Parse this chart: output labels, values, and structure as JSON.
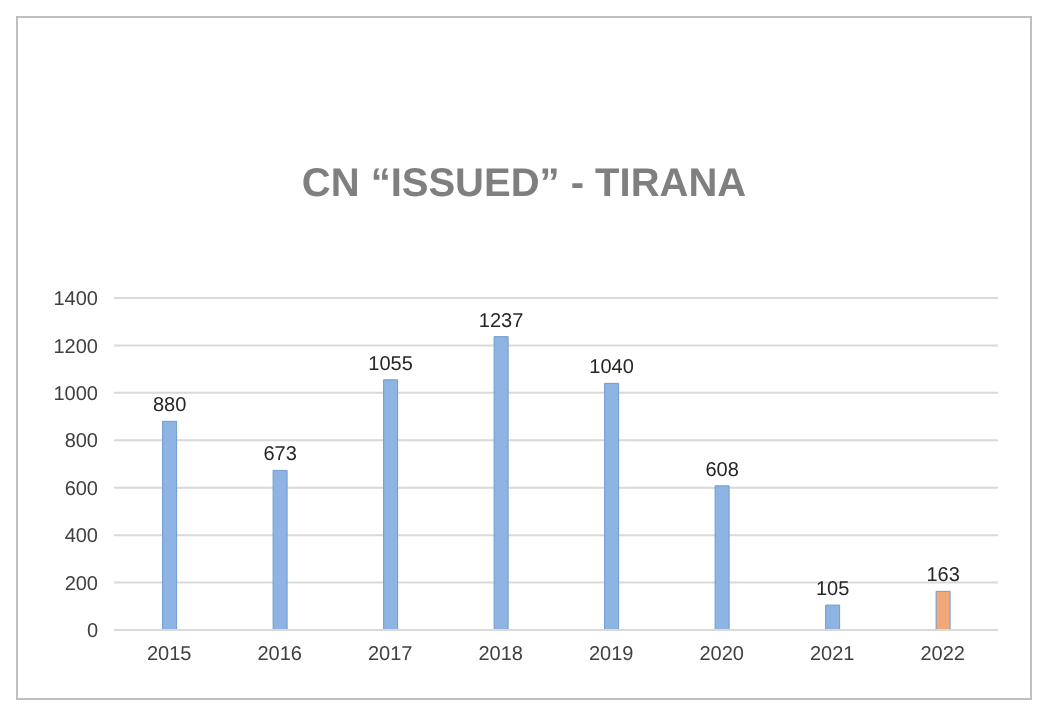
{
  "chart_data": {
    "type": "bar",
    "title": "CN “ISSUED” - TIRANA",
    "categories": [
      "2015",
      "2016",
      "2017",
      "2018",
      "2019",
      "2020",
      "2021",
      "2022"
    ],
    "values": [
      880,
      673,
      1055,
      1237,
      1040,
      608,
      105,
      163
    ],
    "colors": [
      "#8db4e2",
      "#8db4e2",
      "#8db4e2",
      "#8db4e2",
      "#8db4e2",
      "#8db4e2",
      "#8db4e2",
      "#f0a878"
    ],
    "ylim": [
      0,
      1400
    ],
    "yticks": [
      0,
      200,
      400,
      600,
      800,
      1000,
      1200,
      1400
    ],
    "grid": "y",
    "data_labels": true
  }
}
